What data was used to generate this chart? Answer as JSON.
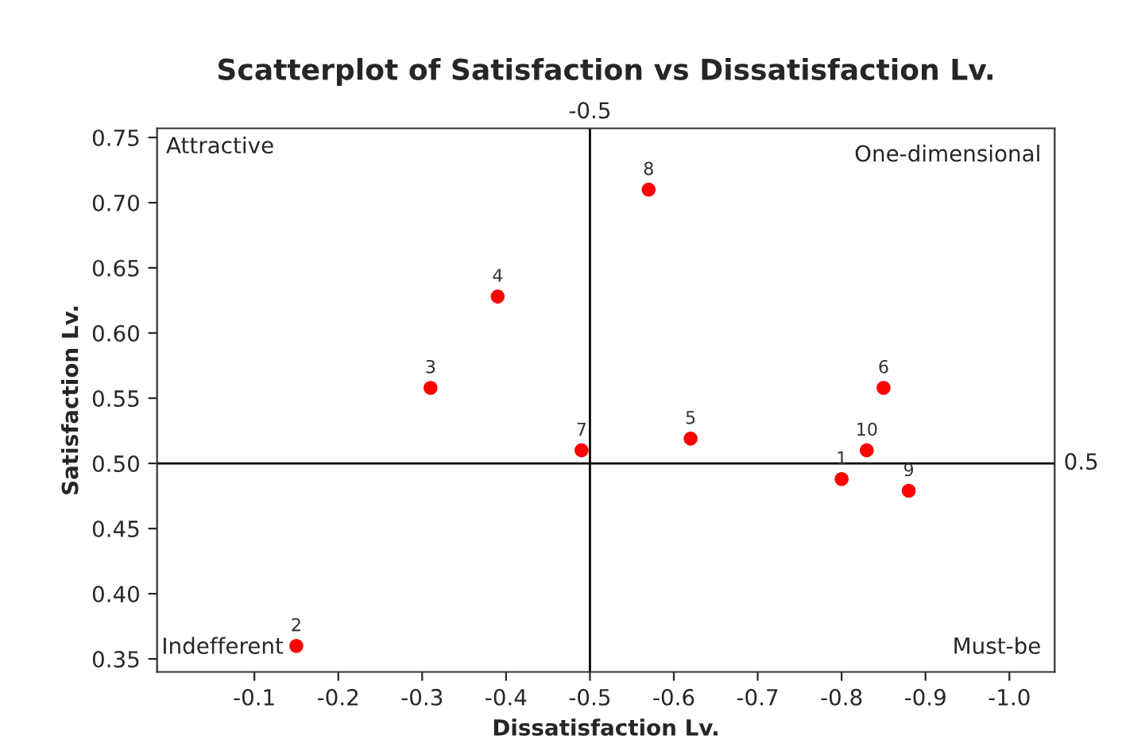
{
  "chart_data": {
    "type": "scatter",
    "title": "Scatterplot of Satisfaction vs Dissatisfaction Lv.",
    "xlabel": "Dissatisfaction Lv.",
    "ylabel": "Satisfaction Lv.",
    "x": [
      -0.8,
      -0.15,
      -0.31,
      -0.39,
      -0.62,
      -0.85,
      -0.49,
      -0.57,
      -0.88,
      -0.83
    ],
    "values": [
      0.488,
      0.36,
      0.558,
      0.628,
      0.519,
      0.558,
      0.51,
      0.71,
      0.479,
      0.51
    ],
    "color": "#ff0000",
    "marker": "circle",
    "xlim": [
      0.016,
      -1.054
    ],
    "ylim": [
      0.34,
      0.757
    ],
    "xticks": [
      -0.1,
      -0.2,
      -0.3,
      -0.4,
      -0.5,
      -0.6,
      -0.7,
      -0.8,
      -0.9,
      {
        "value": -1.0,
        "label": "-1.0"
      }
    ],
    "yticks": [
      {
        "value": 0.35,
        "label": "0.35"
      },
      {
        "value": 0.4,
        "label": "0.40"
      },
      {
        "value": 0.45,
        "label": "0.45"
      },
      {
        "value": 0.5,
        "label": "0.50"
      },
      {
        "value": 0.55,
        "label": "0.55"
      },
      {
        "value": 0.6,
        "label": "0.60"
      },
      {
        "value": 0.65,
        "label": "0.65"
      },
      {
        "value": 0.7,
        "label": "0.70"
      },
      {
        "value": 0.75,
        "label": "0.75"
      }
    ],
    "ref_lines": [
      {
        "axis": "x",
        "value": -0.5,
        "label": "-0.5",
        "color": "#000000"
      },
      {
        "axis": "y",
        "value": 0.5,
        "label": "0.5",
        "color": "#000000"
      }
    ],
    "annotations": [
      "Attractive",
      "One-dimensional",
      "Indefferent",
      "Must-be",
      {
        "text": "1",
        "x": -0.8,
        "y": 0.488
      },
      {
        "text": "2",
        "x": -0.15,
        "y": 0.36
      },
      {
        "text": "3",
        "x": -0.31,
        "y": 0.558
      },
      {
        "text": "4",
        "x": -0.39,
        "y": 0.628
      },
      {
        "text": "5",
        "x": -0.62,
        "y": 0.519
      },
      {
        "text": "6",
        "x": -0.85,
        "y": 0.558
      },
      {
        "text": "7",
        "x": -0.49,
        "y": 0.51
      },
      {
        "text": "8",
        "x": -0.57,
        "y": 0.71
      },
      {
        "text": "9",
        "x": -0.88,
        "y": 0.479
      },
      {
        "text": "10",
        "x": -0.83,
        "y": 0.51
      }
    ],
    "grid": false,
    "legend": false
  }
}
